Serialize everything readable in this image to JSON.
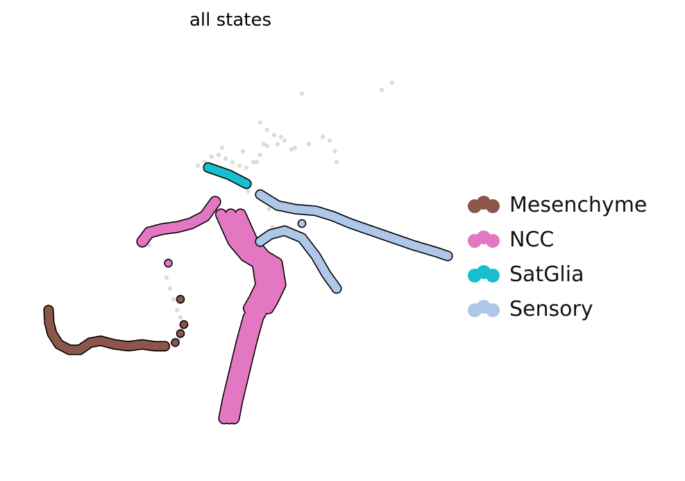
{
  "chart_data": {
    "type": "scatter",
    "title": "all states",
    "xlabel": "",
    "ylabel": "",
    "axes_visible": false,
    "grid": false,
    "legend_position": "right",
    "background_color": "#dcdcdc",
    "edge_color": "#000000",
    "series": [
      {
        "name": "Mesenchyme",
        "color": "#8c564b",
        "path": [
          [
            0.5,
            4.1
          ],
          [
            0.52,
            3.75
          ],
          [
            0.6,
            3.45
          ],
          [
            0.8,
            3.15
          ],
          [
            1.1,
            3.0
          ],
          [
            1.4,
            3.0
          ],
          [
            1.7,
            3.2
          ],
          [
            2.0,
            3.25
          ],
          [
            2.4,
            3.15
          ],
          [
            2.8,
            3.1
          ],
          [
            3.2,
            3.15
          ],
          [
            3.55,
            3.1
          ],
          [
            3.85,
            3.1
          ]
        ],
        "points": [
          [
            4.15,
            3.2
          ],
          [
            4.3,
            3.45
          ],
          [
            4.4,
            3.7
          ],
          [
            4.3,
            4.4
          ]
        ]
      },
      {
        "name": "NCC",
        "color": "#e377c2",
        "path": [
          [
            3.2,
            6.0
          ],
          [
            3.4,
            6.25
          ],
          [
            3.8,
            6.35
          ],
          [
            4.2,
            6.4
          ],
          [
            4.6,
            6.5
          ],
          [
            5.0,
            6.7
          ],
          [
            5.3,
            7.1
          ]
        ],
        "blob": [
          [
            5.75,
            6.75
          ],
          [
            6.1,
            6.0
          ],
          [
            6.45,
            5.6
          ],
          [
            6.8,
            5.4
          ],
          [
            6.9,
            4.8
          ],
          [
            6.7,
            4.4
          ],
          [
            6.4,
            3.9
          ],
          [
            6.2,
            3.2
          ],
          [
            6.0,
            2.4
          ],
          [
            5.8,
            1.6
          ],
          [
            5.7,
            1.1
          ]
        ],
        "points": [
          [
            3.95,
            5.4
          ]
        ]
      },
      {
        "name": "SatGlia",
        "color": "#17becf",
        "path": [
          [
            5.1,
            8.05
          ],
          [
            5.4,
            7.95
          ],
          [
            5.7,
            7.85
          ],
          [
            6.0,
            7.7
          ],
          [
            6.2,
            7.6
          ]
        ]
      },
      {
        "name": "Sensory",
        "color": "#aec7e8",
        "path": [
          [
            6.6,
            7.3
          ],
          [
            7.1,
            7.0
          ],
          [
            7.6,
            6.9
          ],
          [
            8.2,
            6.85
          ],
          [
            8.7,
            6.7
          ],
          [
            9.2,
            6.5
          ],
          [
            9.8,
            6.3
          ],
          [
            10.4,
            6.1
          ],
          [
            11.0,
            5.9
          ],
          [
            11.7,
            5.7
          ],
          [
            12.0,
            5.6
          ]
        ],
        "branch": [
          [
            6.6,
            6.0
          ],
          [
            6.9,
            6.2
          ],
          [
            7.3,
            6.3
          ],
          [
            7.8,
            6.1
          ],
          [
            8.2,
            5.6
          ],
          [
            8.5,
            5.1
          ],
          [
            8.8,
            4.7
          ]
        ],
        "points": [
          [
            7.8,
            6.5
          ]
        ]
      }
    ],
    "background_points": [
      [
        10.4,
        10.4
      ],
      [
        10.1,
        10.2
      ],
      [
        7.8,
        10.1
      ],
      [
        6.6,
        9.3
      ],
      [
        6.8,
        9.1
      ],
      [
        7.0,
        8.95
      ],
      [
        7.2,
        8.9
      ],
      [
        7.3,
        8.8
      ],
      [
        7.1,
        8.7
      ],
      [
        6.8,
        8.65
      ],
      [
        6.6,
        8.4
      ],
      [
        6.4,
        8.2
      ],
      [
        6.2,
        8.05
      ],
      [
        6.0,
        8.1
      ],
      [
        5.8,
        8.2
      ],
      [
        5.6,
        8.3
      ],
      [
        5.4,
        8.4
      ],
      [
        5.2,
        8.35
      ],
      [
        5.0,
        8.2
      ],
      [
        4.8,
        8.1
      ],
      [
        5.5,
        8.6
      ],
      [
        6.5,
        8.2
      ],
      [
        6.1,
        8.5
      ],
      [
        7.6,
        8.6
      ],
      [
        8.0,
        8.7
      ],
      [
        8.4,
        8.9
      ],
      [
        8.6,
        8.8
      ],
      [
        8.75,
        8.5
      ],
      [
        8.8,
        8.2
      ],
      [
        6.7,
        8.7
      ],
      [
        7.5,
        8.55
      ],
      [
        6.25,
        7.4
      ],
      [
        6.85,
        6.9
      ],
      [
        6.95,
        6.4
      ],
      [
        3.3,
        6.1
      ],
      [
        3.4,
        5.9
      ],
      [
        3.9,
        5.0
      ],
      [
        4.0,
        4.7
      ],
      [
        4.1,
        4.4
      ],
      [
        4.2,
        4.1
      ],
      [
        4.3,
        3.9
      ],
      [
        4.35,
        3.6
      ],
      [
        4.25,
        3.3
      ],
      [
        4.1,
        3.15
      ]
    ],
    "note": ""
  }
}
